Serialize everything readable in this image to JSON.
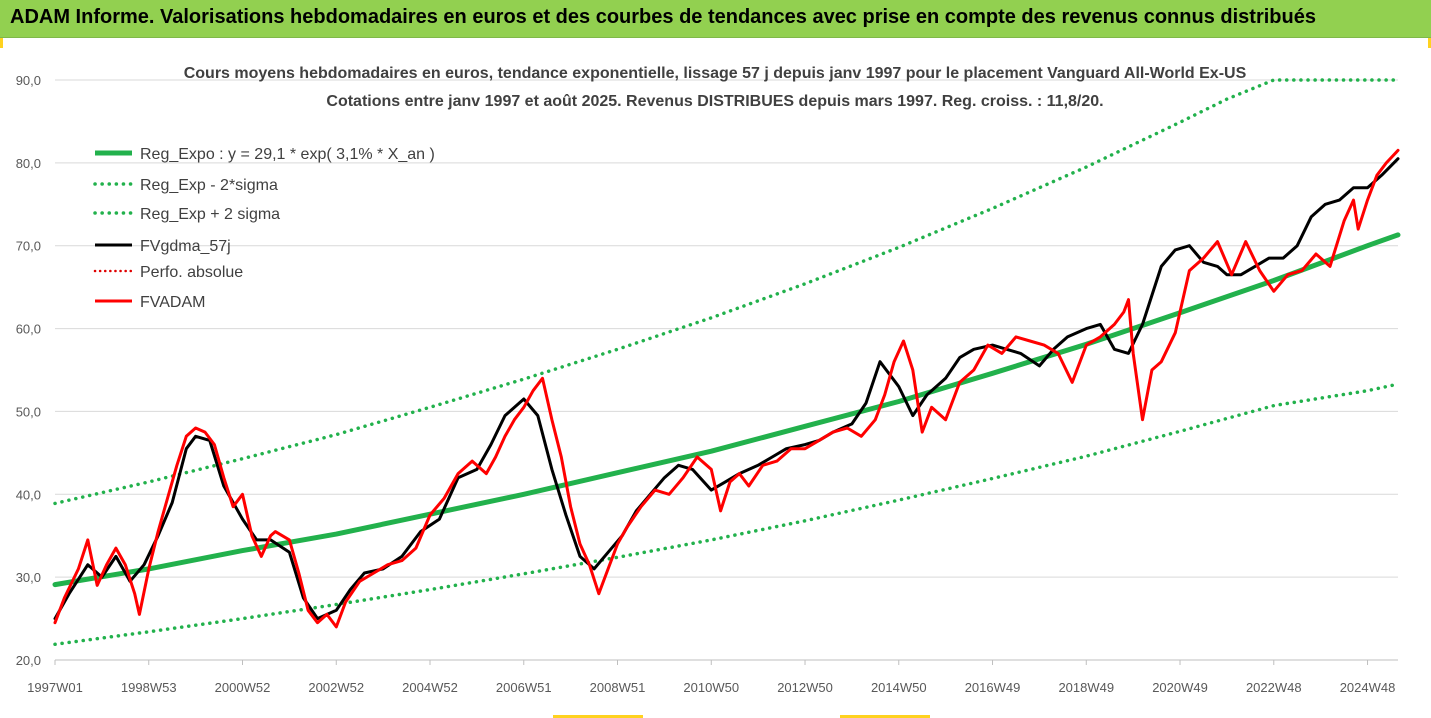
{
  "header": {
    "title": "ADAM Informe. Valorisations hebdomadaires en euros et des courbes de tendances avec prise en compte des revenus connus distribués"
  },
  "chart_data": {
    "type": "line",
    "title": "Cours moyens hebdomadaires en euros, tendance exponentielle, lissage 57 j depuis janv 1997 pour le placement Vanguard All-World Ex-US",
    "subtitle": "Cotations entre janv 1997 et août 2025. Revenus DISTRIBUES depuis mars 1997. Reg. croiss. : 11,8/20.",
    "xlabel": "",
    "ylabel": "",
    "ylim": [
      20,
      90
    ],
    "xlim": [
      1997.0,
      2025.65
    ],
    "grid": true,
    "legend_position": "top-left",
    "y_ticks": [
      "20,0",
      "30,0",
      "40,0",
      "50,0",
      "60,0",
      "70,0",
      "80,0",
      "90,0"
    ],
    "x_tick_labels": [
      {
        "label": "1997W01",
        "x": 1997.0
      },
      {
        "label": "1998W53",
        "x": 1999.0
      },
      {
        "label": "2000W52",
        "x": 2001.0
      },
      {
        "label": "2002W52",
        "x": 2003.0
      },
      {
        "label": "2004W52",
        "x": 2005.0
      },
      {
        "label": "2006W51",
        "x": 2007.0
      },
      {
        "label": "2008W51",
        "x": 2009.0
      },
      {
        "label": "2010W50",
        "x": 2011.0
      },
      {
        "label": "2012W50",
        "x": 2013.0
      },
      {
        "label": "2014W50",
        "x": 2015.0
      },
      {
        "label": "2016W49",
        "x": 2017.0
      },
      {
        "label": "2018W49",
        "x": 2019.0
      },
      {
        "label": "2020W49",
        "x": 2021.0
      },
      {
        "label": "2022W48",
        "x": 2023.0
      },
      {
        "label": "2024W48",
        "x": 2025.0
      }
    ],
    "colors": {
      "regression": "#22b14c",
      "bands": "#22b14c",
      "smoothed": "#000000",
      "absolute": "#e00000",
      "price": "#ff0000",
      "grid": "#d9d9d9"
    },
    "series": [
      {
        "name": "Reg_Expo : y = 29,1 * exp( 3,1% *  X_an )",
        "style": "solid-thick",
        "x": [
          1997.0,
          1999.0,
          2001.0,
          2003.0,
          2005.0,
          2007.0,
          2009.0,
          2011.0,
          2013.0,
          2015.0,
          2017.0,
          2019.0,
          2021.0,
          2023.0,
          2025.0,
          2025.65
        ],
        "y": [
          29.1,
          31.0,
          33.2,
          35.2,
          37.6,
          40.0,
          42.6,
          45.2,
          48.2,
          51.2,
          54.6,
          58.1,
          61.9,
          65.8,
          70.0,
          71.3
        ]
      },
      {
        "name": "Reg_Exp - 2*sigma",
        "style": "dotted",
        "x": [
          1997.0,
          1999.0,
          2001.0,
          2003.0,
          2005.0,
          2007.0,
          2009.0,
          2011.0,
          2013.0,
          2015.0,
          2017.0,
          2019.0,
          2021.0,
          2023.0,
          2025.0,
          2025.65
        ],
        "y": [
          21.9,
          23.4,
          25.0,
          26.7,
          28.5,
          30.4,
          32.4,
          34.5,
          36.8,
          39.3,
          41.9,
          44.6,
          47.6,
          50.7,
          52.5,
          53.3
        ]
      },
      {
        "name": "Reg_Exp + 2 sigma",
        "style": "dotted",
        "x": [
          1997.0,
          1999.0,
          2001.0,
          2003.0,
          2005.0,
          2007.0,
          2009.0,
          2011.0,
          2013.0,
          2015.0,
          2017.0,
          2019.0,
          2021.0,
          2022.0,
          2023.0,
          2025.65
        ],
        "y": [
          38.9,
          41.5,
          44.3,
          47.2,
          50.5,
          53.9,
          57.5,
          61.3,
          65.4,
          69.8,
          74.5,
          79.5,
          84.9,
          87.7,
          90.0,
          90.0
        ]
      },
      {
        "name": "FVgdma_57j",
        "style": "solid",
        "x": [
          1997.0,
          1997.3,
          1997.7,
          1998.0,
          1998.3,
          1998.6,
          1998.9,
          1999.2,
          1999.5,
          1999.8,
          2000.0,
          2000.3,
          2000.6,
          2001.0,
          2001.3,
          2001.6,
          2002.0,
          2002.3,
          2002.6,
          2003.0,
          2003.3,
          2003.6,
          2004.0,
          2004.4,
          2004.8,
          2005.2,
          2005.6,
          2006.0,
          2006.3,
          2006.6,
          2007.0,
          2007.3,
          2007.6,
          2007.9,
          2008.2,
          2008.5,
          2008.8,
          2009.1,
          2009.4,
          2009.7,
          2010.0,
          2010.3,
          2010.6,
          2011.0,
          2011.3,
          2011.6,
          2012.0,
          2012.3,
          2012.6,
          2013.0,
          2013.3,
          2013.6,
          2014.0,
          2014.3,
          2014.6,
          2015.0,
          2015.3,
          2015.6,
          2016.0,
          2016.3,
          2016.6,
          2017.0,
          2017.3,
          2017.6,
          2018.0,
          2018.3,
          2018.6,
          2019.0,
          2019.3,
          2019.6,
          2019.9,
          2020.2,
          2020.4,
          2020.6,
          2020.9,
          2021.2,
          2021.5,
          2021.8,
          2022.0,
          2022.3,
          2022.6,
          2022.9,
          2023.2,
          2023.5,
          2023.8,
          2024.1,
          2024.4,
          2024.7,
          2025.0,
          2025.3,
          2025.65
        ],
        "y": [
          25.0,
          28.0,
          31.5,
          30.0,
          32.5,
          29.5,
          31.5,
          35.0,
          39.0,
          45.5,
          47.0,
          46.5,
          41.0,
          37.0,
          34.5,
          34.5,
          33.0,
          27.5,
          25.0,
          26.0,
          28.5,
          30.5,
          31.0,
          32.5,
          35.5,
          37.0,
          42.0,
          43.0,
          46.0,
          49.5,
          51.5,
          49.5,
          43.0,
          37.5,
          32.5,
          31.0,
          33.0,
          35.0,
          38.0,
          40.0,
          42.0,
          43.5,
          43.0,
          40.5,
          41.5,
          42.5,
          43.5,
          44.5,
          45.5,
          46.0,
          46.5,
          47.5,
          48.5,
          51.0,
          56.0,
          53.0,
          49.5,
          52.0,
          54.0,
          56.5,
          57.5,
          58.0,
          57.5,
          57.0,
          55.5,
          57.5,
          59.0,
          60.0,
          60.5,
          57.5,
          57.0,
          60.5,
          64.0,
          67.5,
          69.5,
          70.0,
          68.0,
          67.5,
          66.5,
          66.5,
          67.5,
          68.5,
          68.5,
          70.0,
          73.5,
          75.0,
          75.5,
          77.0,
          77.0,
          78.5,
          80.5
        ]
      },
      {
        "name": "Perfo. absolue",
        "style": "dotted-red",
        "x": [],
        "y": []
      },
      {
        "name": "FVADAM",
        "style": "solid-thick",
        "x": [
          1997.0,
          1997.2,
          1997.5,
          1997.7,
          1997.9,
          1998.1,
          1998.3,
          1998.5,
          1998.7,
          1998.8,
          1999.0,
          1999.2,
          1999.4,
          1999.6,
          1999.8,
          2000.0,
          2000.2,
          2000.4,
          2000.6,
          2000.8,
          2001.0,
          2001.2,
          2001.4,
          2001.6,
          2001.7,
          2002.0,
          2002.2,
          2002.4,
          2002.6,
          2002.8,
          2003.0,
          2003.2,
          2003.5,
          2003.8,
          2004.1,
          2004.4,
          2004.7,
          2005.0,
          2005.3,
          2005.6,
          2005.9,
          2006.2,
          2006.4,
          2006.6,
          2006.8,
          2007.0,
          2007.2,
          2007.4,
          2007.6,
          2007.8,
          2008.0,
          2008.2,
          2008.4,
          2008.6,
          2008.8,
          2009.0,
          2009.2,
          2009.5,
          2009.8,
          2010.1,
          2010.4,
          2010.7,
          2011.0,
          2011.2,
          2011.4,
          2011.6,
          2011.8,
          2012.1,
          2012.4,
          2012.7,
          2013.0,
          2013.3,
          2013.6,
          2013.9,
          2014.2,
          2014.5,
          2014.7,
          2014.9,
          2015.1,
          2015.3,
          2015.5,
          2015.7,
          2016.0,
          2016.3,
          2016.6,
          2016.9,
          2017.2,
          2017.5,
          2017.8,
          2018.1,
          2018.4,
          2018.7,
          2019.0,
          2019.3,
          2019.6,
          2019.8,
          2019.9,
          2020.0,
          2020.2,
          2020.4,
          2020.6,
          2020.9,
          2021.2,
          2021.5,
          2021.8,
          2022.1,
          2022.4,
          2022.7,
          2023.0,
          2023.3,
          2023.6,
          2023.9,
          2024.2,
          2024.5,
          2024.7,
          2024.8,
          2025.0,
          2025.2,
          2025.4,
          2025.65
        ],
        "y": [
          24.5,
          27.5,
          31.0,
          34.5,
          29.0,
          31.5,
          33.5,
          31.5,
          28.0,
          25.5,
          31.0,
          35.5,
          39.5,
          43.5,
          47.0,
          48.0,
          47.5,
          46.0,
          42.0,
          38.5,
          40.0,
          35.0,
          32.5,
          35.0,
          35.5,
          34.5,
          30.5,
          26.0,
          24.5,
          25.5,
          24.0,
          27.0,
          29.5,
          30.5,
          31.5,
          32.0,
          33.5,
          37.5,
          39.5,
          42.5,
          44.0,
          42.5,
          44.5,
          47.0,
          49.0,
          50.5,
          52.5,
          54.0,
          49.0,
          44.5,
          38.5,
          34.0,
          31.5,
          28.0,
          31.0,
          34.0,
          36.0,
          38.5,
          40.5,
          40.0,
          42.0,
          44.5,
          43.0,
          38.0,
          41.5,
          42.5,
          41.0,
          43.5,
          44.0,
          45.5,
          45.5,
          46.5,
          47.5,
          48.0,
          47.0,
          49.0,
          52.0,
          56.0,
          58.5,
          55.0,
          47.5,
          50.5,
          49.0,
          53.5,
          55.0,
          58.0,
          57.0,
          59.0,
          58.5,
          58.0,
          57.0,
          53.5,
          58.0,
          59.0,
          60.5,
          62.0,
          63.5,
          57.0,
          49.0,
          55.0,
          56.0,
          59.5,
          67.0,
          68.5,
          70.5,
          66.5,
          70.5,
          67.0,
          64.5,
          66.5,
          67.0,
          69.0,
          67.5,
          73.0,
          75.5,
          72.0,
          75.5,
          78.5,
          80.0,
          81.5
        ]
      }
    ]
  }
}
